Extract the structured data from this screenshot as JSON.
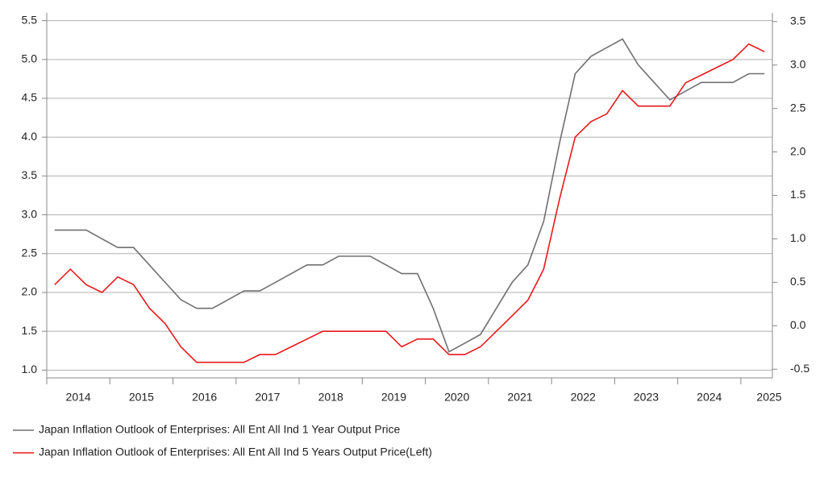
{
  "chart_data": {
    "type": "line",
    "categories": [
      "2014",
      null,
      null,
      null,
      "2015",
      null,
      null,
      null,
      "2016",
      null,
      null,
      null,
      "2017",
      null,
      null,
      null,
      "2018",
      null,
      null,
      null,
      "2019",
      null,
      null,
      null,
      "2020",
      null,
      null,
      null,
      "2021",
      null,
      null,
      null,
      "2022",
      null,
      null,
      null,
      "2023",
      null,
      null,
      null,
      "2024",
      null,
      null,
      null,
      "2025",
      null
    ],
    "series": [
      {
        "name": "Japan Inflation Outlook of Enterprises: All Ent All Ind 1 Year Output Price",
        "color": "#707070",
        "axis": "y2",
        "values": [
          1.1,
          1.1,
          1.1,
          1.0,
          0.9,
          0.9,
          0.7,
          0.5,
          0.3,
          0.2,
          0.2,
          0.3,
          0.4,
          0.4,
          0.5,
          0.6,
          0.7,
          0.7,
          0.8,
          0.8,
          0.8,
          0.7,
          0.6,
          0.6,
          0.2,
          -0.3,
          -0.2,
          -0.1,
          0.2,
          0.5,
          0.7,
          1.2,
          2.1,
          2.9,
          3.1,
          3.2,
          3.3,
          3.0,
          2.8,
          2.6,
          2.7,
          2.8,
          2.8,
          2.8,
          2.9,
          2.9
        ]
      },
      {
        "name": "Japan Inflation Outlook of Enterprises: All Ent All Ind 5 Years Output Price(Left)",
        "color": "#e8191c",
        "values": [
          2.1,
          2.3,
          2.1,
          2.0,
          2.2,
          2.1,
          1.8,
          1.6,
          1.3,
          1.1,
          1.1,
          1.1,
          1.1,
          1.2,
          1.2,
          1.3,
          1.4,
          1.5,
          1.5,
          1.5,
          1.5,
          1.5,
          1.3,
          1.4,
          1.4,
          1.2,
          1.2,
          1.3,
          1.5,
          1.7,
          1.9,
          2.3,
          3.2,
          4.0,
          4.2,
          4.3,
          4.6,
          4.4,
          4.4,
          4.4,
          4.7,
          4.8,
          4.9,
          5.0,
          5.2,
          5.1
        ]
      }
    ],
    "ylim": [
      0.9,
      5.6
    ],
    "yticks": [
      {
        "value": 1,
        "label": "1.0"
      },
      1.5,
      {
        "value": 2,
        "label": "2.0"
      },
      2.5,
      {
        "value": 3,
        "label": "3.0"
      },
      3.5,
      {
        "value": 4,
        "label": "4.0"
      },
      4.5,
      {
        "value": 5,
        "label": "5.0"
      },
      5.5
    ],
    "y2lim": [
      -0.6,
      3.6
    ],
    "y2ticks": [
      -0.5,
      {
        "value": 0,
        "label": "0.0"
      },
      0.5,
      {
        "value": 1,
        "label": "1.0"
      },
      1.5,
      {
        "value": 2,
        "label": "2.0"
      },
      2.5,
      {
        "value": 3,
        "label": "3.0"
      },
      3.5
    ],
    "grid": true,
    "legend": "bottom"
  }
}
